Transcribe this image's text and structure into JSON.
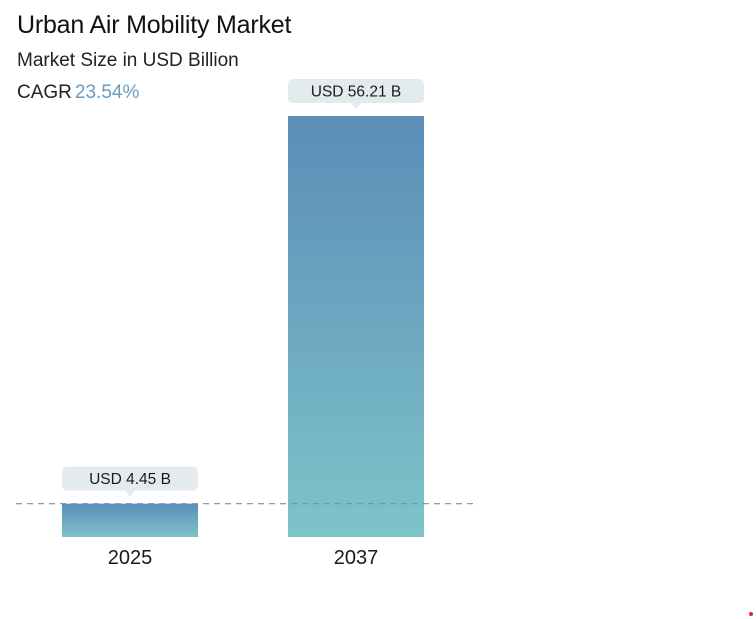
{
  "header": {
    "title": "Urban Air Mobility Market",
    "subtitle": "Market Size in USD Billion",
    "cagr_label": "CAGR",
    "cagr_value": "23.54%"
  },
  "chart_data": {
    "type": "bar",
    "title": "Urban Air Mobility Market",
    "subtitle": "Market Size in USD Billion",
    "categories": [
      "2025",
      "2037"
    ],
    "values": [
      4.45,
      56.21
    ],
    "data_labels": [
      "USD 4.45 B",
      "USD 56.21 B"
    ],
    "unit": "USD Billion",
    "cagr": "23.54%",
    "xlabel": "",
    "ylabel": "",
    "grid": false,
    "reference_line": {
      "value": 4.45,
      "style": "dashed"
    },
    "colors": {
      "bar_top": "#5b8db8",
      "bar_bottom": "#7ec3c9",
      "label_bg": "#e3ebef",
      "reference_line": "#6a93b8",
      "cagr_accent": "#6a9ac0"
    }
  }
}
